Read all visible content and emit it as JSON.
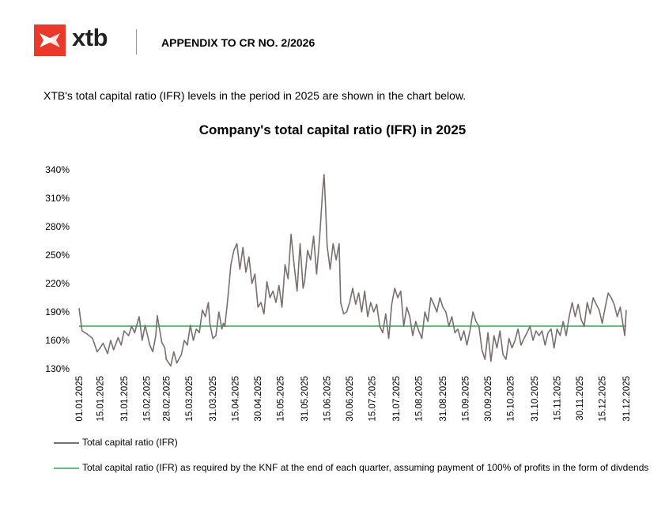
{
  "header": {
    "logo_text": "xtb",
    "title": "APPENDIX TO CR NO. 2/2026"
  },
  "intro_text": "XTB's total capital ratio (IFR) levels in the period in 2025 are shown in the chart below.",
  "colors": {
    "brand": "#e8392a",
    "series_ifr": "#7a6e6e",
    "series_required": "#5cbf7c"
  },
  "chart_data": {
    "type": "line",
    "title": "Company's total capital ratio (IFR) in 2025",
    "xlabel": "",
    "ylabel": "",
    "x_start": "01.01.2025",
    "x_end": "31.12.2025",
    "x_tick_labels": [
      "01.01.2025",
      "15.01.2025",
      "31.01.2025",
      "15.02.2025",
      "28.02.2025",
      "15.03.2025",
      "31.03.2025",
      "15.04.2025",
      "30.04.2025",
      "15.05.2025",
      "31.05.2025",
      "15.06.2025",
      "30.06.2025",
      "15.07.2025",
      "31.07.2025",
      "15.08.2025",
      "31.08.2025",
      "15.09.2025",
      "30.09.2025",
      "15.10.2025",
      "31.10.2025",
      "15.11.2025",
      "30.11.2025",
      "15.12.2025",
      "31.12.2025"
    ],
    "y_tick_labels": [
      "130%",
      "160%",
      "190%",
      "220%",
      "250%",
      "280%",
      "310%",
      "340%"
    ],
    "ylim": [
      130,
      345
    ],
    "grid": false,
    "legend_position": "bottom",
    "series": [
      {
        "name": "Total capital ratio (IFR)",
        "points": [
          [
            "01.01.2025",
            194
          ],
          [
            "03.01.2025",
            170
          ],
          [
            "07.01.2025",
            166
          ],
          [
            "10.01.2025",
            162
          ],
          [
            "13.01.2025",
            148
          ],
          [
            "15.01.2025",
            152
          ],
          [
            "17.01.2025",
            157
          ],
          [
            "20.01.2025",
            146
          ],
          [
            "22.01.2025",
            160
          ],
          [
            "24.01.2025",
            150
          ],
          [
            "27.01.2025",
            163
          ],
          [
            "29.01.2025",
            155
          ],
          [
            "31.01.2025",
            170
          ],
          [
            "03.02.2025",
            165
          ],
          [
            "05.02.2025",
            175
          ],
          [
            "07.02.2025",
            168
          ],
          [
            "10.02.2025",
            185
          ],
          [
            "12.02.2025",
            160
          ],
          [
            "14.02.2025",
            176
          ],
          [
            "17.02.2025",
            155
          ],
          [
            "19.02.2025",
            148
          ],
          [
            "21.02.2025",
            165
          ],
          [
            "22.02.2025",
            186
          ],
          [
            "25.02.2025",
            158
          ],
          [
            "27.02.2025",
            152
          ],
          [
            "28.02.2025",
            140
          ],
          [
            "03.03.2025",
            133
          ],
          [
            "05.03.2025",
            148
          ],
          [
            "07.03.2025",
            136
          ],
          [
            "10.03.2025",
            145
          ],
          [
            "12.03.2025",
            160
          ],
          [
            "14.03.2025",
            155
          ],
          [
            "16.03.2025",
            176
          ],
          [
            "18.03.2025",
            160
          ],
          [
            "20.03.2025",
            172
          ],
          [
            "22.03.2025",
            168
          ],
          [
            "24.03.2025",
            192
          ],
          [
            "26.03.2025",
            185
          ],
          [
            "28.03.2025",
            200
          ],
          [
            "29.03.2025",
            178
          ],
          [
            "31.03.2025",
            162
          ],
          [
            "02.04.2025",
            165
          ],
          [
            "04.04.2025",
            190
          ],
          [
            "06.04.2025",
            172
          ],
          [
            "07.04.2025",
            178
          ],
          [
            "08.04.2025",
            175
          ],
          [
            "10.04.2025",
            205
          ],
          [
            "12.04.2025",
            240
          ],
          [
            "14.04.2025",
            255
          ],
          [
            "16.04.2025",
            262
          ],
          [
            "18.04.2025",
            235
          ],
          [
            "20.04.2025",
            258
          ],
          [
            "22.04.2025",
            232
          ],
          [
            "24.04.2025",
            248
          ],
          [
            "26.04.2025",
            220
          ],
          [
            "28.04.2025",
            230
          ],
          [
            "30.04.2025",
            195
          ],
          [
            "02.05.2025",
            200
          ],
          [
            "04.05.2025",
            188
          ],
          [
            "06.05.2025",
            222
          ],
          [
            "08.05.2025",
            205
          ],
          [
            "10.05.2025",
            212
          ],
          [
            "12.05.2025",
            200
          ],
          [
            "14.05.2025",
            218
          ],
          [
            "16.05.2025",
            195
          ],
          [
            "18.05.2025",
            240
          ],
          [
            "20.05.2025",
            225
          ],
          [
            "22.05.2025",
            272
          ],
          [
            "24.05.2025",
            240
          ],
          [
            "26.05.2025",
            212
          ],
          [
            "28.05.2025",
            262
          ],
          [
            "30.05.2025",
            215
          ],
          [
            "31.05.2025",
            222
          ],
          [
            "02.06.2025",
            255
          ],
          [
            "04.06.2025",
            245
          ],
          [
            "06.06.2025",
            270
          ],
          [
            "08.06.2025",
            230
          ],
          [
            "10.06.2025",
            268
          ],
          [
            "12.06.2025",
            318
          ],
          [
            "13.06.2025",
            335
          ],
          [
            "14.06.2025",
            300
          ],
          [
            "15.06.2025",
            260
          ],
          [
            "17.06.2025",
            235
          ],
          [
            "19.06.2025",
            262
          ],
          [
            "21.06.2025",
            245
          ],
          [
            "23.06.2025",
            262
          ],
          [
            "24.06.2025",
            200
          ],
          [
            "26.06.2025",
            188
          ],
          [
            "28.06.2025",
            190
          ],
          [
            "30.06.2025",
            200
          ],
          [
            "02.07.2025",
            215
          ],
          [
            "04.07.2025",
            198
          ],
          [
            "06.07.2025",
            210
          ],
          [
            "08.07.2025",
            190
          ],
          [
            "10.07.2025",
            212
          ],
          [
            "12.07.2025",
            185
          ],
          [
            "14.07.2025",
            200
          ],
          [
            "16.07.2025",
            190
          ],
          [
            "18.07.2025",
            198
          ],
          [
            "20.07.2025",
            175
          ],
          [
            "22.07.2025",
            168
          ],
          [
            "24.07.2025",
            188
          ],
          [
            "26.07.2025",
            162
          ],
          [
            "28.07.2025",
            198
          ],
          [
            "30.07.2025",
            215
          ],
          [
            "01.08.2025",
            205
          ],
          [
            "03.08.2025",
            212
          ],
          [
            "05.08.2025",
            175
          ],
          [
            "07.08.2025",
            195
          ],
          [
            "09.08.2025",
            185
          ],
          [
            "11.08.2025",
            165
          ],
          [
            "13.08.2025",
            180
          ],
          [
            "15.08.2025",
            170
          ],
          [
            "17.08.2025",
            162
          ],
          [
            "19.08.2025",
            190
          ],
          [
            "21.08.2025",
            180
          ],
          [
            "23.08.2025",
            205
          ],
          [
            "25.08.2025",
            198
          ],
          [
            "27.08.2025",
            190
          ],
          [
            "29.08.2025",
            205
          ],
          [
            "31.08.2025",
            195
          ],
          [
            "02.09.2025",
            190
          ],
          [
            "04.09.2025",
            175
          ],
          [
            "06.09.2025",
            185
          ],
          [
            "08.09.2025",
            168
          ],
          [
            "10.09.2025",
            172
          ],
          [
            "12.09.2025",
            160
          ],
          [
            "14.09.2025",
            170
          ],
          [
            "16.09.2025",
            155
          ],
          [
            "18.09.2025",
            170
          ],
          [
            "20.09.2025",
            190
          ],
          [
            "22.09.2025",
            180
          ],
          [
            "24.09.2025",
            175
          ],
          [
            "26.09.2025",
            150
          ],
          [
            "28.09.2025",
            140
          ],
          [
            "30.09.2025",
            168
          ],
          [
            "02.10.2025",
            138
          ],
          [
            "04.10.2025",
            165
          ],
          [
            "06.10.2025",
            152
          ],
          [
            "08.10.2025",
            170
          ],
          [
            "10.10.2025",
            145
          ],
          [
            "12.10.2025",
            140
          ],
          [
            "14.10.2025",
            162
          ],
          [
            "16.10.2025",
            152
          ],
          [
            "18.10.2025",
            160
          ],
          [
            "20.10.2025",
            172
          ],
          [
            "22.10.2025",
            155
          ],
          [
            "24.10.2025",
            162
          ],
          [
            "26.10.2025",
            168
          ],
          [
            "28.10.2025",
            175
          ],
          [
            "30.10.2025",
            160
          ],
          [
            "01.11.2025",
            170
          ],
          [
            "03.11.2025",
            165
          ],
          [
            "05.11.2025",
            170
          ],
          [
            "07.11.2025",
            155
          ],
          [
            "09.11.2025",
            168
          ],
          [
            "11.11.2025",
            172
          ],
          [
            "13.11.2025",
            152
          ],
          [
            "15.11.2025",
            172
          ],
          [
            "17.11.2025",
            165
          ],
          [
            "19.11.2025",
            180
          ],
          [
            "21.11.2025",
            165
          ],
          [
            "23.11.2025",
            185
          ],
          [
            "25.11.2025",
            200
          ],
          [
            "27.11.2025",
            185
          ],
          [
            "29.11.2025",
            198
          ],
          [
            "01.12.2025",
            182
          ],
          [
            "03.12.2025",
            175
          ],
          [
            "05.12.2025",
            200
          ],
          [
            "07.12.2025",
            188
          ],
          [
            "09.12.2025",
            205
          ],
          [
            "11.12.2025",
            198
          ],
          [
            "13.12.2025",
            192
          ],
          [
            "15.12.2025",
            178
          ],
          [
            "17.12.2025",
            195
          ],
          [
            "19.12.2025",
            210
          ],
          [
            "21.12.2025",
            205
          ],
          [
            "23.12.2025",
            198
          ],
          [
            "25.12.2025",
            185
          ],
          [
            "27.12.2025",
            195
          ],
          [
            "29.12.2025",
            175
          ],
          [
            "30.12.2025",
            165
          ],
          [
            "31.12.2025",
            192
          ]
        ]
      },
      {
        "name": "Total capital ratio (IFR) as required by the KNF at the end of each quarter, assuming payment of 100% of profits in the form of divdends",
        "points": [
          [
            "01.01.2025",
            175
          ],
          [
            "31.12.2025",
            175
          ]
        ]
      }
    ]
  }
}
